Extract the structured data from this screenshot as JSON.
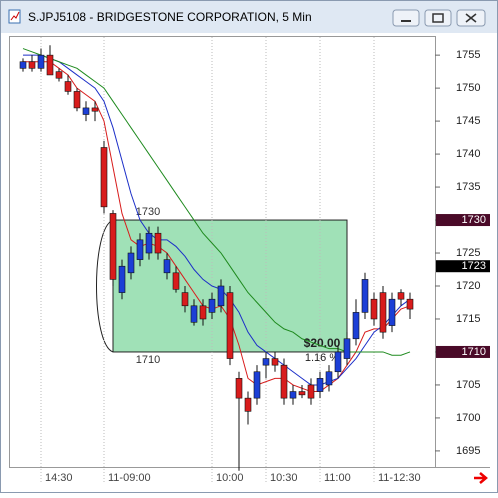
{
  "chart_data": {
    "type": "candlestick",
    "title": "S.JPJ5108 - BRIDGESTONE CORPORATION, 5 Min",
    "categories": [
      null,
      null,
      "14:30",
      null,
      null,
      null,
      null,
      null,
      null,
      "11-09:00",
      null,
      null,
      null,
      null,
      null,
      null,
      null,
      null,
      null,
      null,
      null,
      "10:00",
      null,
      null,
      null,
      null,
      null,
      "10:30",
      null,
      null,
      null,
      null,
      null,
      "11:00",
      null,
      null,
      null,
      null,
      null,
      "11-12:30",
      null,
      null,
      null,
      null
    ],
    "open": [
      1753,
      1754,
      1753,
      1755,
      1752.5,
      1751,
      1749.5,
      1746,
      1747,
      1741,
      1731,
      1719,
      1722,
      1724,
      1725,
      1728,
      1722,
      1722,
      1719,
      1714.5,
      1717,
      1716,
      1717,
      1719,
      1706,
      1703,
      1703,
      1708,
      1709,
      1708,
      1703,
      1704,
      1705,
      1704,
      1705,
      1707,
      1709,
      1712,
      1716,
      1718,
      1719,
      1714,
      1719,
      1718
    ],
    "high": [
      1754.5,
      1755,
      1756,
      1756.5,
      1753,
      1752,
      1750,
      1748,
      1748,
      1742,
      1731.5,
      1724,
      1726,
      1728,
      1729,
      1729,
      1725,
      1723,
      1720,
      1718,
      1718,
      1719,
      1721,
      1720,
      1707,
      1704,
      1708,
      1710,
      1710,
      1709,
      1705,
      1705,
      1706,
      1707,
      1708,
      1711,
      1713,
      1718,
      1722,
      1719,
      1720,
      1719,
      1719.5,
      1719
    ],
    "low": [
      1752.5,
      1752.5,
      1752.5,
      1752,
      1751,
      1749,
      1746.5,
      1745,
      1745,
      1731,
      1720,
      1718,
      1721,
      1723,
      1724,
      1724,
      1721,
      1719,
      1716,
      1714,
      1714,
      1715,
      1716,
      1708,
      1692,
      1699,
      1702,
      1706,
      1707,
      1702,
      1702,
      1703,
      1702,
      1703,
      1704,
      1706,
      1708,
      1711,
      1715,
      1714,
      1712,
      1713,
      1717,
      1715
    ],
    "close": [
      1754,
      1753,
      1755,
      1752,
      1751.5,
      1749.5,
      1747,
      1747,
      1746.5,
      1732,
      1721,
      1723,
      1725,
      1727,
      1728,
      1725,
      1724,
      1719.5,
      1717,
      1717,
      1715,
      1718,
      1720,
      1709,
      1703,
      1701,
      1707,
      1709,
      1708,
      1703,
      1704,
      1703.5,
      1703,
      1706,
      1707,
      1710,
      1712,
      1716,
      1721,
      1715,
      1713,
      1718,
      1718,
      1716.5
    ],
    "up_color": "#1c3fd6",
    "down_color": "#d81c1c",
    "lines": [
      {
        "color": "#d81c1c",
        "values": [
          1754,
          1754,
          1754,
          1754,
          1753,
          1752,
          1750,
          1749,
          1748,
          1745,
          1738,
          1731,
          1727,
          1726,
          1726.5,
          1726,
          1725,
          1723,
          1721,
          1719,
          1717,
          1716.5,
          1717,
          1715,
          1711,
          1706,
          1705,
          1705.5,
          1706,
          1706,
          1705,
          1704.5,
          1704,
          1704,
          1705,
          1706,
          1708,
          1710,
          1713,
          1713.5,
          1713.5,
          1715,
          1716.5,
          1717
        ]
      },
      {
        "color": "#1c2fc8",
        "values": [
          1755,
          1755,
          1755,
          1754.5,
          1754,
          1753,
          1752,
          1751,
          1750,
          1748,
          1744,
          1739,
          1734,
          1730,
          1728,
          1727,
          1727,
          1726,
          1724.5,
          1722.5,
          1721,
          1720,
          1719.5,
          1718,
          1716,
          1713,
          1711,
          1710,
          1709,
          1708,
          1707,
          1706,
          1705,
          1705,
          1705.5,
          1706,
          1707.5,
          1709,
          1711,
          1713,
          1714,
          1715.5,
          1717,
          1718
        ]
      },
      {
        "color": "#1e8a1e",
        "values": [
          1756,
          1755.5,
          1755,
          1754.5,
          1754,
          1753.5,
          1753,
          1752,
          1751,
          1750,
          1748,
          1746,
          1744,
          1742,
          1740,
          1738,
          1736,
          1734,
          1732,
          1730,
          1728,
          1726.5,
          1725,
          1723,
          1721,
          1719,
          1717.5,
          1716,
          1714.5,
          1713.5,
          1713,
          1712,
          1711.5,
          1711,
          1710.5,
          1710.5,
          1710,
          1710,
          1710,
          1710,
          1710,
          1709.5,
          1709.5,
          1710
        ]
      }
    ],
    "ylim": [
      1692.56,
      1757.75
    ],
    "yticks": [
      1695,
      1700,
      1705,
      1710,
      1715,
      1720,
      1725,
      1730,
      1735,
      1740,
      1745,
      1750,
      1755
    ],
    "box": {
      "top": 1730,
      "bottom": 1710,
      "color": "#8fdcaa",
      "amount": "$20.00",
      "percent": "1.16 %"
    },
    "price_markers": [
      {
        "value": 1730,
        "color": "#4a0a28"
      },
      {
        "value": 1723,
        "color": "#000000"
      },
      {
        "value": 1710,
        "color": "#4a0a28"
      }
    ]
  }
}
